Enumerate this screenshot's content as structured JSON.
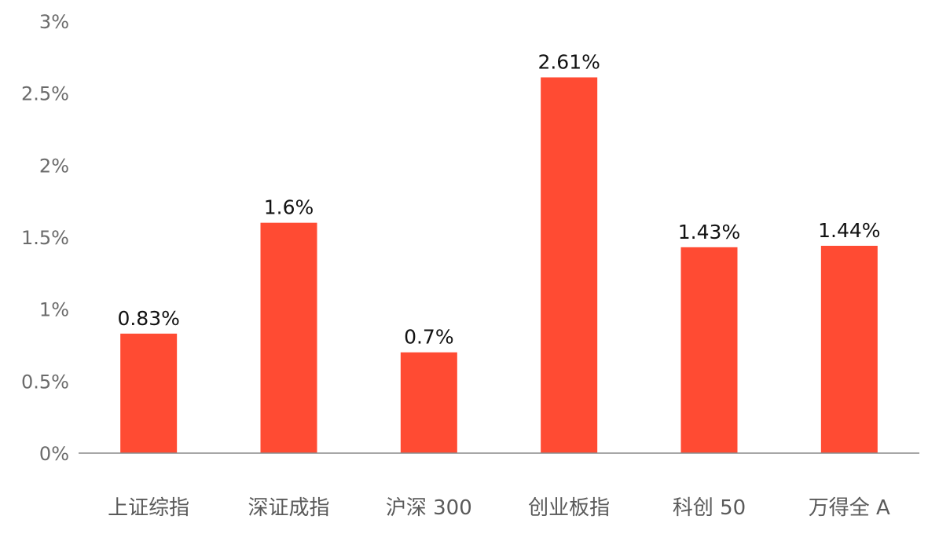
{
  "chart_data": {
    "type": "bar",
    "title": "",
    "xlabel": "",
    "ylabel": "",
    "categories": [
      "上证综指",
      "深证成指",
      "沪深 300",
      "创业板指",
      "科创 50",
      "万得全 A"
    ],
    "values": [
      0.83,
      1.6,
      0.7,
      2.61,
      1.43,
      1.44
    ],
    "value_labels": [
      "0.83%",
      "1.6%",
      "0.7%",
      "2.61%",
      "1.43%",
      "1.44%"
    ],
    "y_ticks": [
      0,
      0.5,
      1,
      1.5,
      2,
      2.5,
      3
    ],
    "y_tick_labels": [
      "0%",
      "0.5%",
      "1%",
      "1.5%",
      "2%",
      "2.5%",
      "3%"
    ],
    "ylim": [
      0,
      3
    ],
    "grid": false,
    "legend": "none",
    "colors": {
      "bar": "#FF4B33",
      "axis": "#8a8a8a",
      "tick_text": "#6b6b6b",
      "category_text": "#5a5a5a",
      "value_text": "#111111"
    }
  }
}
